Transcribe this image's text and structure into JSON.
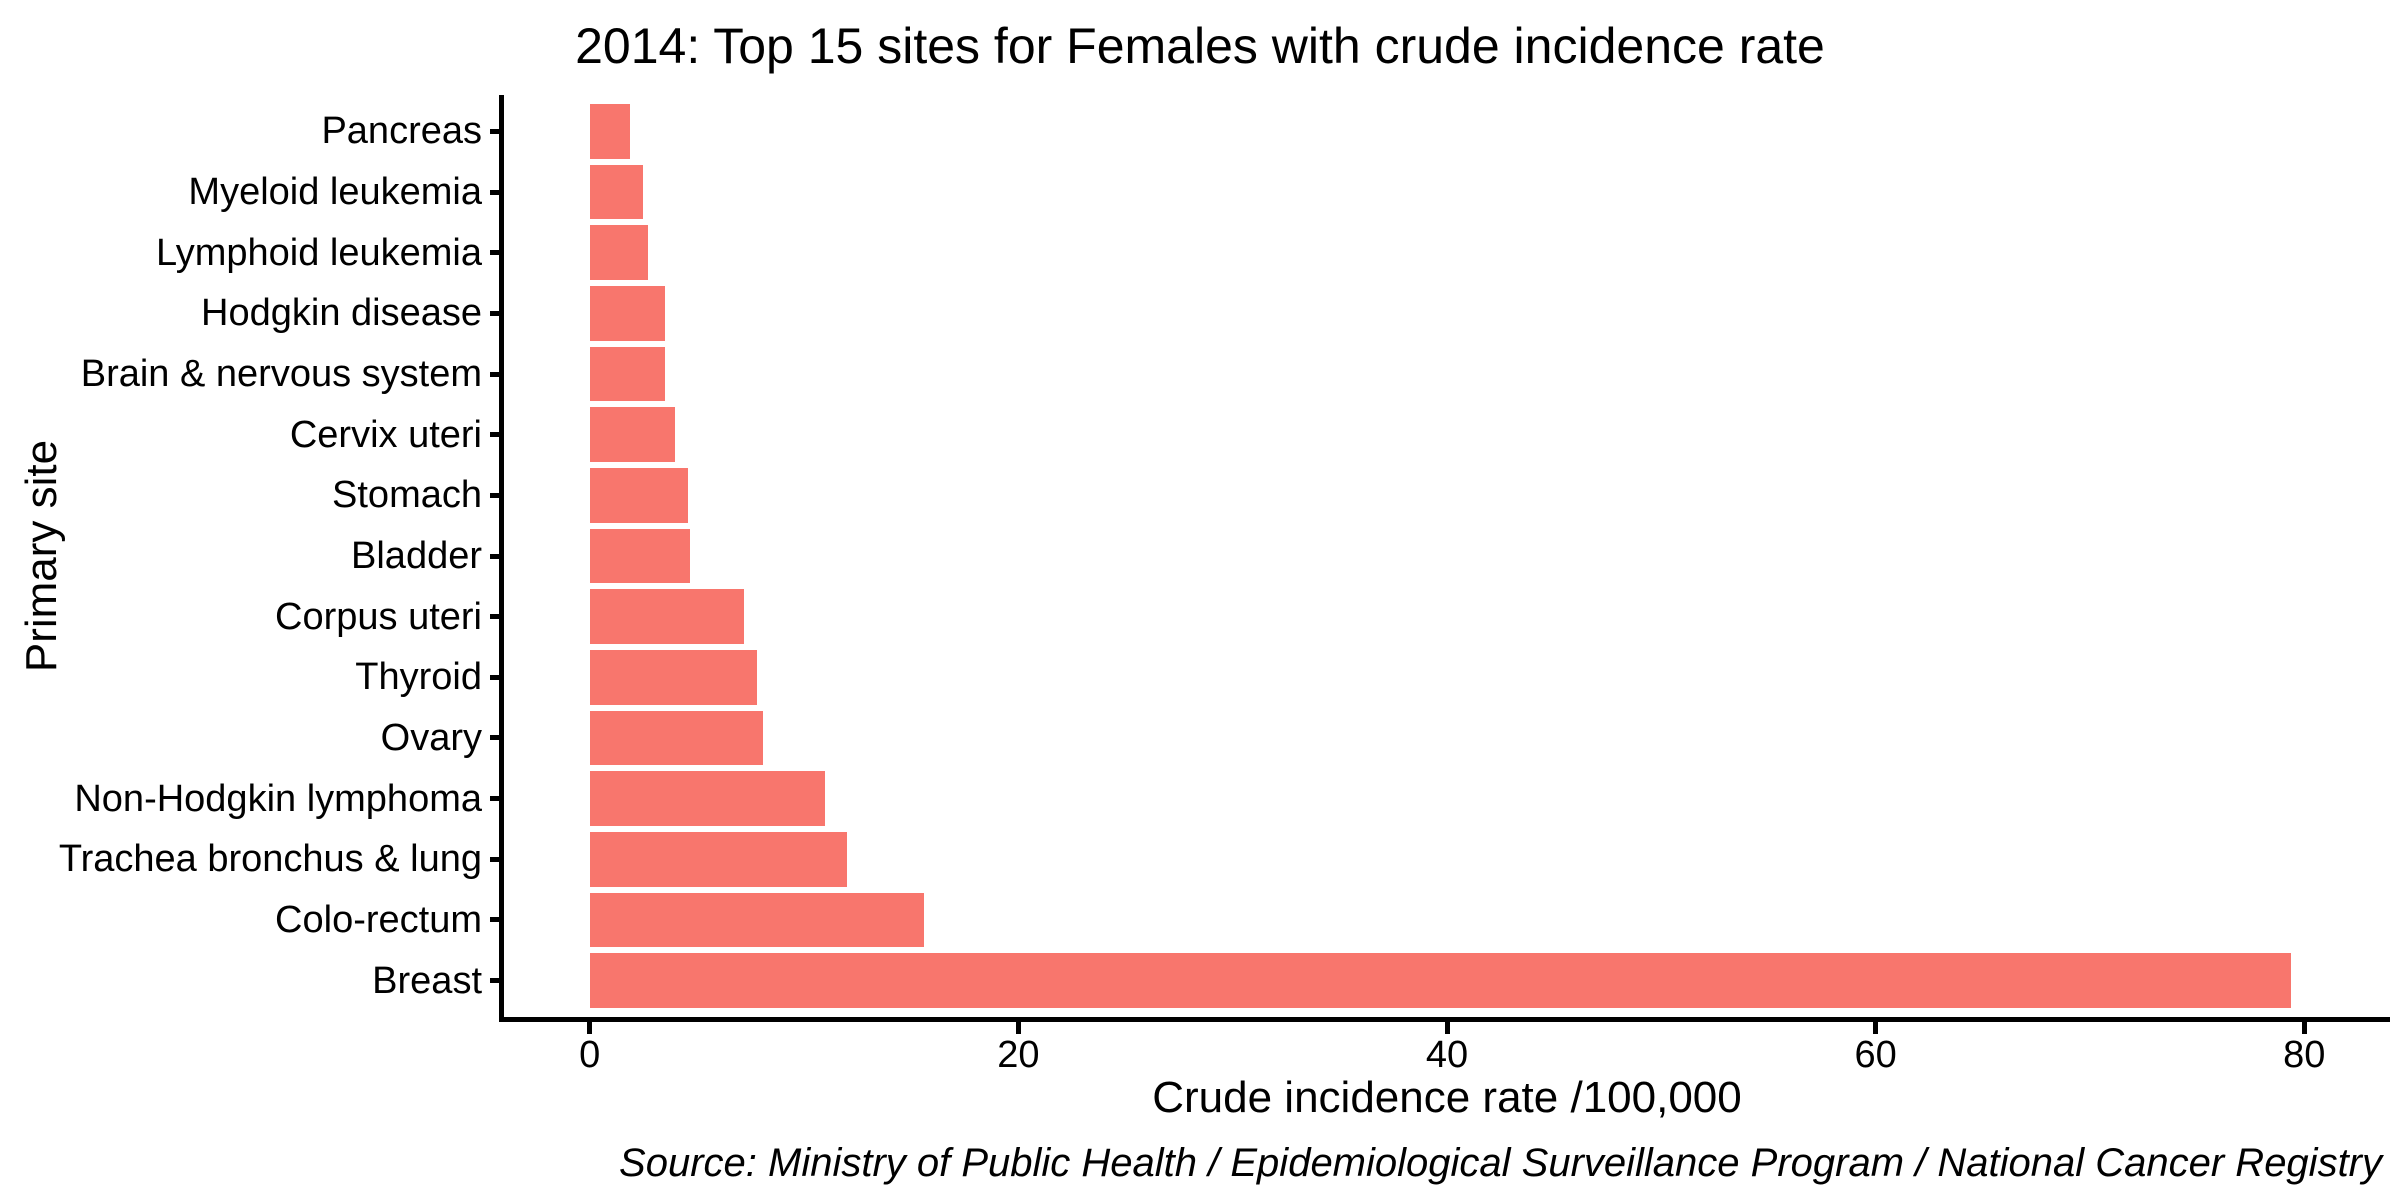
{
  "figure": {
    "title": "2014: Top 15 sites for Females with crude incidence rate",
    "source_note": "Source: Ministry of Public Health / Epidemiological Surveillance Program / National Cancer Registry"
  },
  "chart_data": {
    "type": "bar",
    "orientation": "horizontal",
    "title": "2014: Top 15 sites for Females with crude incidence rate",
    "xlabel": "Crude incidence rate /100,000",
    "ylabel": "Primary site",
    "categories": [
      "Pancreas",
      "Myeloid leukemia",
      "Lymphoid leukemia",
      "Hodgkin disease",
      "Brain & nervous system",
      "Cervix uteri",
      "Stomach",
      "Bladder",
      "Corpus uteri",
      "Thyroid",
      "Ovary",
      "Non-Hodgkin lymphoma",
      "Trachea bronchus & lung",
      "Colo-rectum",
      "Breast"
    ],
    "values": [
      1.9,
      2.5,
      2.7,
      3.5,
      3.5,
      4.0,
      4.6,
      4.7,
      7.2,
      7.8,
      8.1,
      11.0,
      12.0,
      15.6,
      79.4
    ],
    "x_ticks": [
      0,
      20,
      40,
      60,
      80
    ],
    "x_tick_labels": [
      "0",
      "20",
      "40",
      "60",
      "80"
    ],
    "xlim": [
      -4,
      84
    ],
    "category_span_units": 15.2,
    "bar_width_fraction": 0.9,
    "grid": false,
    "legend": false,
    "bar_color": "#F8766D",
    "axis_color": "#000000",
    "text_color": "#000000",
    "background_color": "#FFFFFF",
    "source": "Source: Ministry of Public Health / Epidemiological Surveillance Program / National Cancer Registry"
  }
}
